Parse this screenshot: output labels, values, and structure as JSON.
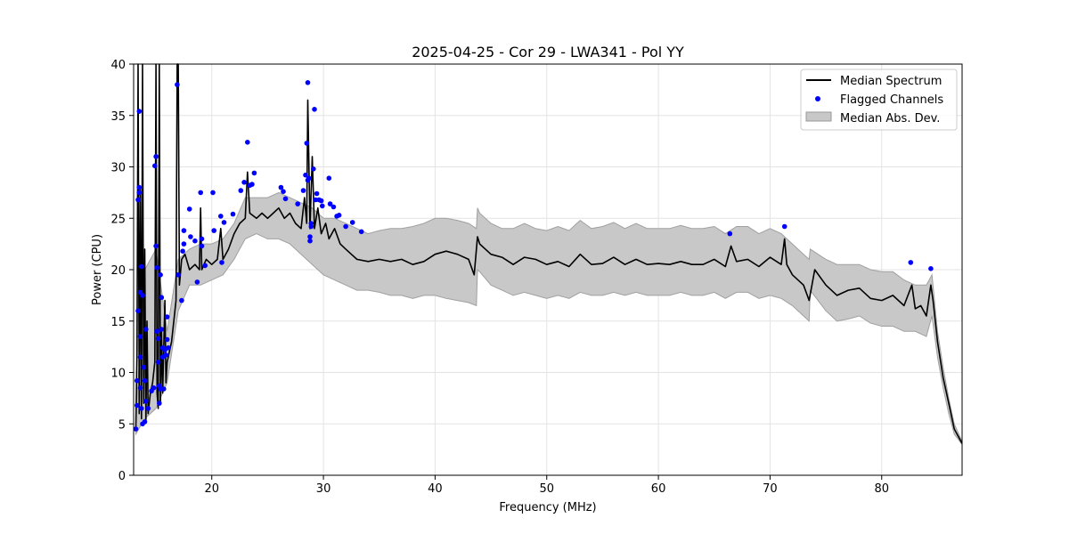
{
  "chart_data": {
    "type": "line",
    "title": "2025-04-25 - Cor 29 - LWA341 - Pol YY",
    "xlabel": "Frequency (MHz)",
    "ylabel": "Power (CPU)",
    "xlim": [
      13.0,
      87.2
    ],
    "ylim": [
      0,
      40
    ],
    "xticks": [
      20,
      30,
      40,
      50,
      60,
      70,
      80
    ],
    "yticks": [
      0,
      5,
      10,
      15,
      20,
      25,
      30,
      35,
      40
    ],
    "grid": true,
    "legend_position": "top-right",
    "legend": [
      {
        "label": "Median Spectrum",
        "kind": "line",
        "color": "#000000"
      },
      {
        "label": "Flagged Channels",
        "kind": "point",
        "color": "#0000ff"
      },
      {
        "label": "Median Abs. Dev.",
        "kind": "band",
        "color": "#c8c8c8"
      }
    ],
    "median_spectrum": [
      [
        13.2,
        4.6
      ],
      [
        13.3,
        12
      ],
      [
        13.4,
        40
      ],
      [
        13.5,
        6
      ],
      [
        13.6,
        28
      ],
      [
        13.7,
        5.5
      ],
      [
        13.8,
        40
      ],
      [
        13.9,
        7
      ],
      [
        14.0,
        22
      ],
      [
        14.1,
        5.2
      ],
      [
        14.2,
        15
      ],
      [
        14.3,
        6
      ],
      [
        14.5,
        8
      ],
      [
        14.7,
        9
      ],
      [
        14.9,
        11
      ],
      [
        15.0,
        40
      ],
      [
        15.1,
        8
      ],
      [
        15.2,
        6.5
      ],
      [
        15.3,
        40
      ],
      [
        15.4,
        7
      ],
      [
        15.5,
        14
      ],
      [
        15.6,
        8
      ],
      [
        15.8,
        17
      ],
      [
        15.9,
        9
      ],
      [
        16.0,
        11
      ],
      [
        16.2,
        12
      ],
      [
        16.4,
        13
      ],
      [
        16.6,
        15
      ],
      [
        16.8,
        17
      ],
      [
        16.9,
        40
      ],
      [
        17.0,
        40
      ],
      [
        17.1,
        18.5
      ],
      [
        17.3,
        21
      ],
      [
        17.6,
        21.5
      ],
      [
        18.0,
        20
      ],
      [
        18.5,
        20.5
      ],
      [
        18.9,
        20
      ],
      [
        19.0,
        26
      ],
      [
        19.1,
        20
      ],
      [
        19.5,
        21
      ],
      [
        20.0,
        20.5
      ],
      [
        20.5,
        21
      ],
      [
        20.8,
        24
      ],
      [
        21.0,
        21
      ],
      [
        21.5,
        22
      ],
      [
        22.0,
        23.5
      ],
      [
        22.5,
        24.5
      ],
      [
        23.0,
        25
      ],
      [
        23.2,
        29.5
      ],
      [
        23.4,
        25.5
      ],
      [
        24.0,
        25
      ],
      [
        24.5,
        25.5
      ],
      [
        25.0,
        25
      ],
      [
        25.5,
        25.5
      ],
      [
        26.0,
        26
      ],
      [
        26.5,
        25
      ],
      [
        27.0,
        25.5
      ],
      [
        27.5,
        24.5
      ],
      [
        28.0,
        24
      ],
      [
        28.3,
        27
      ],
      [
        28.5,
        24.5
      ],
      [
        28.6,
        36.5
      ],
      [
        28.8,
        24
      ],
      [
        29.0,
        31
      ],
      [
        29.2,
        24
      ],
      [
        29.5,
        26
      ],
      [
        29.8,
        23.5
      ],
      [
        30.2,
        24.5
      ],
      [
        30.5,
        23
      ],
      [
        31.0,
        24
      ],
      [
        31.5,
        22.5
      ],
      [
        32.0,
        22
      ],
      [
        32.5,
        21.5
      ],
      [
        33.0,
        21
      ],
      [
        34.0,
        20.8
      ],
      [
        35.0,
        21
      ],
      [
        36.0,
        20.8
      ],
      [
        37.0,
        21
      ],
      [
        38.0,
        20.5
      ],
      [
        39.0,
        20.8
      ],
      [
        40.0,
        21.5
      ],
      [
        41.0,
        21.8
      ],
      [
        42.0,
        21.5
      ],
      [
        43.0,
        21
      ],
      [
        43.5,
        19.5
      ],
      [
        43.8,
        23.2
      ],
      [
        44.0,
        22.5
      ],
      [
        45.0,
        21.5
      ],
      [
        46.0,
        21.2
      ],
      [
        47.0,
        20.5
      ],
      [
        48.0,
        21.2
      ],
      [
        49.0,
        21
      ],
      [
        50.0,
        20.5
      ],
      [
        51.0,
        20.8
      ],
      [
        52.0,
        20.3
      ],
      [
        53.0,
        21.5
      ],
      [
        54.0,
        20.5
      ],
      [
        55.0,
        20.6
      ],
      [
        56.0,
        21.2
      ],
      [
        57.0,
        20.5
      ],
      [
        58.0,
        21
      ],
      [
        59.0,
        20.5
      ],
      [
        60.0,
        20.6
      ],
      [
        61.0,
        20.5
      ],
      [
        62.0,
        20.8
      ],
      [
        63.0,
        20.5
      ],
      [
        64.0,
        20.5
      ],
      [
        65.0,
        21
      ],
      [
        66.0,
        20.3
      ],
      [
        66.5,
        22.3
      ],
      [
        67.0,
        20.8
      ],
      [
        68.0,
        21
      ],
      [
        69.0,
        20.3
      ],
      [
        70.0,
        21.2
      ],
      [
        71.0,
        20.5
      ],
      [
        71.3,
        23
      ],
      [
        71.5,
        20.5
      ],
      [
        72.0,
        19.5
      ],
      [
        73.0,
        18.5
      ],
      [
        73.5,
        17
      ],
      [
        74.0,
        20
      ],
      [
        75.0,
        18.5
      ],
      [
        76.0,
        17.5
      ],
      [
        77.0,
        18
      ],
      [
        78.0,
        18.2
      ],
      [
        79.0,
        17.2
      ],
      [
        80.0,
        17
      ],
      [
        81.0,
        17.5
      ],
      [
        82.0,
        16.5
      ],
      [
        82.7,
        18.5
      ],
      [
        83.0,
        16.2
      ],
      [
        83.5,
        16.5
      ],
      [
        84.0,
        15.5
      ],
      [
        84.4,
        18.5
      ],
      [
        84.6,
        17
      ],
      [
        85.0,
        13
      ],
      [
        85.5,
        9.5
      ],
      [
        86.0,
        7
      ],
      [
        86.5,
        4.5
      ],
      [
        87.2,
        3.1
      ]
    ],
    "mad_band": [
      [
        13.2,
        4.0,
        5.5
      ],
      [
        14.0,
        5.5,
        20
      ],
      [
        15.0,
        6.5,
        22
      ],
      [
        16.0,
        9,
        14
      ],
      [
        17.0,
        16,
        21
      ],
      [
        18.0,
        18.5,
        22
      ],
      [
        19.0,
        18.5,
        22.5
      ],
      [
        20.0,
        19,
        22.5
      ],
      [
        21.0,
        19.5,
        23
      ],
      [
        22.0,
        21,
        24.5
      ],
      [
        23.0,
        23,
        27
      ],
      [
        24.0,
        23.5,
        27
      ],
      [
        25.0,
        23,
        27
      ],
      [
        26.0,
        23,
        27.5
      ],
      [
        27.0,
        22.5,
        27
      ],
      [
        28.0,
        21.5,
        26.5
      ],
      [
        29.0,
        20.5,
        26
      ],
      [
        30.0,
        19.5,
        25
      ],
      [
        31.0,
        19,
        25
      ],
      [
        32.0,
        18.5,
        24.5
      ],
      [
        33.0,
        18,
        24
      ],
      [
        34.0,
        18,
        23.5
      ],
      [
        35.0,
        17.8,
        23.8
      ],
      [
        36.0,
        17.5,
        24
      ],
      [
        37.0,
        17.5,
        24
      ],
      [
        38.0,
        17.2,
        24.2
      ],
      [
        39.0,
        17.5,
        24.5
      ],
      [
        40.0,
        17.5,
        25
      ],
      [
        41.0,
        17.2,
        25
      ],
      [
        42.0,
        17,
        24.8
      ],
      [
        43.0,
        16.8,
        24.5
      ],
      [
        43.7,
        16.5,
        24
      ],
      [
        43.8,
        20,
        26
      ],
      [
        44.0,
        19.8,
        25.5
      ],
      [
        45.0,
        18.5,
        24.5
      ],
      [
        46.0,
        18,
        24
      ],
      [
        47.0,
        17.5,
        24
      ],
      [
        48.0,
        17.8,
        24.5
      ],
      [
        49.0,
        17.5,
        24
      ],
      [
        50.0,
        17.2,
        23.8
      ],
      [
        51.0,
        17.5,
        24.2
      ],
      [
        52.0,
        17.2,
        23.8
      ],
      [
        53.0,
        17.8,
        24.8
      ],
      [
        54.0,
        17.5,
        24
      ],
      [
        55.0,
        17.5,
        24.2
      ],
      [
        56.0,
        17.8,
        24.6
      ],
      [
        57.0,
        17.5,
        24
      ],
      [
        58.0,
        17.8,
        24.5
      ],
      [
        59.0,
        17.5,
        24
      ],
      [
        60.0,
        17.5,
        24
      ],
      [
        61.0,
        17.5,
        24
      ],
      [
        62.0,
        17.8,
        24.3
      ],
      [
        63.0,
        17.5,
        24
      ],
      [
        64.0,
        17.5,
        24
      ],
      [
        65.0,
        17.8,
        24.2
      ],
      [
        66.0,
        17.2,
        23.5
      ],
      [
        67.0,
        17.8,
        24.2
      ],
      [
        68.0,
        17.8,
        24.2
      ],
      [
        69.0,
        17.2,
        23.5
      ],
      [
        70.0,
        17.5,
        24
      ],
      [
        71.0,
        17.2,
        23.5
      ],
      [
        72.0,
        16.5,
        22.5
      ],
      [
        73.0,
        15.5,
        21.5
      ],
      [
        73.5,
        15,
        21
      ],
      [
        73.6,
        18,
        22
      ],
      [
        75.0,
        16,
        21
      ],
      [
        76.0,
        15,
        20.5
      ],
      [
        77.0,
        15.2,
        20.5
      ],
      [
        78.0,
        15.5,
        20.5
      ],
      [
        79.0,
        14.8,
        20
      ],
      [
        80.0,
        14.5,
        19.8
      ],
      [
        81.0,
        14.5,
        19.8
      ],
      [
        82.0,
        14,
        19
      ],
      [
        83.0,
        14,
        18.5
      ],
      [
        84.0,
        13.5,
        18.5
      ],
      [
        84.5,
        15.5,
        19.5
      ],
      [
        85.0,
        11.5,
        14
      ],
      [
        85.5,
        8.5,
        10.5
      ],
      [
        86.0,
        6,
        7.5
      ],
      [
        86.5,
        4,
        5
      ],
      [
        87.2,
        3,
        3.3
      ]
    ],
    "flagged_channels": [
      [
        13.2,
        4.5
      ],
      [
        13.3,
        6.8
      ],
      [
        13.3,
        9.2
      ],
      [
        13.4,
        16
      ],
      [
        13.4,
        26.8
      ],
      [
        13.5,
        27.5
      ],
      [
        13.5,
        35.4
      ],
      [
        13.5,
        28
      ],
      [
        13.6,
        8.5
      ],
      [
        13.6,
        11.5
      ],
      [
        13.6,
        13.5
      ],
      [
        13.6,
        17.8
      ],
      [
        13.7,
        20.3
      ],
      [
        13.7,
        6.5
      ],
      [
        13.8,
        5
      ],
      [
        13.8,
        17.5
      ],
      [
        13.9,
        10.5
      ],
      [
        14.0,
        5.2
      ],
      [
        14.0,
        9.2
      ],
      [
        14.1,
        14.2
      ],
      [
        14.1,
        7.2
      ],
      [
        14.3,
        6.5
      ],
      [
        14.6,
        8.2
      ],
      [
        14.8,
        8.5
      ],
      [
        14.9,
        30.1
      ],
      [
        15.0,
        31
      ],
      [
        15.0,
        22.3
      ],
      [
        15.1,
        20.2
      ],
      [
        15.1,
        14
      ],
      [
        15.2,
        13.3
      ],
      [
        15.2,
        11
      ],
      [
        15.3,
        7
      ],
      [
        15.3,
        8.7
      ],
      [
        15.4,
        19.5
      ],
      [
        15.4,
        8.4
      ],
      [
        15.5,
        17.3
      ],
      [
        15.5,
        14.2
      ],
      [
        15.6,
        12.4
      ],
      [
        15.6,
        11.5
      ],
      [
        15.7,
        8.4
      ],
      [
        15.8,
        12.2
      ],
      [
        15.9,
        11.7
      ],
      [
        16.0,
        15.4
      ],
      [
        16.0,
        13.2
      ],
      [
        16.1,
        12.4
      ],
      [
        16.9,
        38
      ],
      [
        17.0,
        19.5
      ],
      [
        17.3,
        17
      ],
      [
        17.4,
        21.8
      ],
      [
        17.5,
        23.8
      ],
      [
        17.5,
        22.5
      ],
      [
        18.0,
        25.9
      ],
      [
        18.1,
        23.2
      ],
      [
        18.5,
        22.8
      ],
      [
        18.7,
        18.8
      ],
      [
        19.0,
        27.5
      ],
      [
        19.1,
        22.3
      ],
      [
        19.1,
        23
      ],
      [
        19.4,
        20.4
      ],
      [
        20.1,
        27.5
      ],
      [
        20.2,
        23.8
      ],
      [
        20.8,
        25.2
      ],
      [
        20.9,
        20.7
      ],
      [
        21.1,
        24.6
      ],
      [
        21.9,
        25.4
      ],
      [
        22.6,
        27.7
      ],
      [
        22.9,
        28.5
      ],
      [
        23.2,
        32.4
      ],
      [
        23.4,
        28.2
      ],
      [
        23.6,
        28.3
      ],
      [
        23.8,
        29.4
      ],
      [
        26.2,
        28
      ],
      [
        26.4,
        27.6
      ],
      [
        26.6,
        26.9
      ],
      [
        27.7,
        26.4
      ],
      [
        28.2,
        27.7
      ],
      [
        28.4,
        29.2
      ],
      [
        28.5,
        32.3
      ],
      [
        28.6,
        28.7
      ],
      [
        28.6,
        38.2
      ],
      [
        28.7,
        28.9
      ],
      [
        28.8,
        23.2
      ],
      [
        28.8,
        22.8
      ],
      [
        28.9,
        24.2
      ],
      [
        28.9,
        24.5
      ],
      [
        29.1,
        29.8
      ],
      [
        29.2,
        35.6
      ],
      [
        29.3,
        26.8
      ],
      [
        29.4,
        27.4
      ],
      [
        29.6,
        26.8
      ],
      [
        29.8,
        26.7
      ],
      [
        29.9,
        26.2
      ],
      [
        30.5,
        28.9
      ],
      [
        30.6,
        26.4
      ],
      [
        30.9,
        26.1
      ],
      [
        31.2,
        25.2
      ],
      [
        31.4,
        25.3
      ],
      [
        32.0,
        24.2
      ],
      [
        32.6,
        24.6
      ],
      [
        33.4,
        23.7
      ],
      [
        66.4,
        23.5
      ],
      [
        71.3,
        24.2
      ],
      [
        82.6,
        20.7
      ],
      [
        84.4,
        20.1
      ]
    ]
  }
}
